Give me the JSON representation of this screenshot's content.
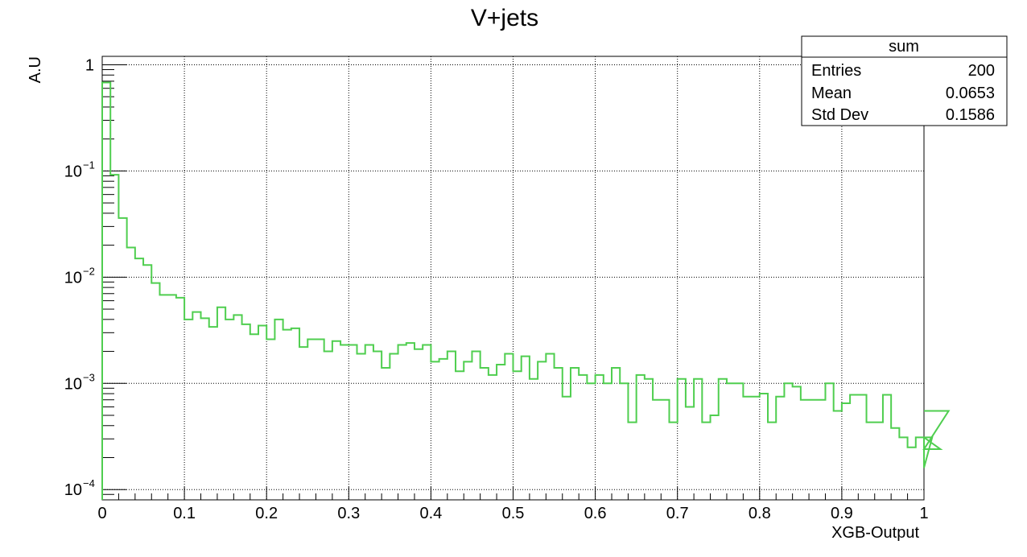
{
  "chart_data": {
    "type": "bar",
    "title": "V+jets",
    "xlabel": "XGB-Output",
    "ylabel": "A.U",
    "xlim": [
      0,
      1
    ],
    "ylim": [
      8e-05,
      1.2
    ],
    "yscale": "log",
    "grid": true,
    "line_color": "#4fce4f",
    "bin_width": 0.01,
    "x_ticks": [
      "0",
      "0.1",
      "0.2",
      "0.3",
      "0.4",
      "0.5",
      "0.6",
      "0.7",
      "0.8",
      "0.9",
      "1"
    ],
    "y_ticks": [
      {
        "value": 1,
        "base": "1",
        "exp": ""
      },
      {
        "value": 0.1,
        "base": "10",
        "exp": "−1"
      },
      {
        "value": 0.01,
        "base": "10",
        "exp": "−2"
      },
      {
        "value": 0.001,
        "base": "10",
        "exp": "−3"
      },
      {
        "value": 0.0001,
        "base": "10",
        "exp": "−4"
      }
    ],
    "values": [
      0.68,
      0.092,
      0.036,
      0.019,
      0.015,
      0.013,
      0.0088,
      0.0068,
      0.0068,
      0.0064,
      0.004,
      0.0047,
      0.0041,
      0.0034,
      0.0052,
      0.004,
      0.0044,
      0.0036,
      0.0029,
      0.0035,
      0.0026,
      0.004,
      0.0032,
      0.0033,
      0.0022,
      0.0026,
      0.0026,
      0.002,
      0.0025,
      0.0023,
      0.0023,
      0.0019,
      0.0023,
      0.002,
      0.0014,
      0.0019,
      0.0023,
      0.0024,
      0.0021,
      0.0023,
      0.0016,
      0.0017,
      0.002,
      0.0013,
      0.0016,
      0.002,
      0.0014,
      0.0012,
      0.0015,
      0.0019,
      0.0013,
      0.0018,
      0.0011,
      0.0016,
      0.0019,
      0.0014,
      0.00075,
      0.0014,
      0.0012,
      0.001,
      0.0012,
      0.001,
      0.0014,
      0.001,
      0.00043,
      0.0012,
      0.0011,
      0.0007,
      0.0007,
      0.00043,
      0.0011,
      0.0006,
      0.0011,
      0.00043,
      0.0005,
      0.0011,
      0.001,
      0.001,
      0.00075,
      0.00075,
      0.0008,
      0.00043,
      0.00075,
      0.001,
      0.00093,
      0.0007,
      0.0007,
      0.0007,
      0.001,
      0.00055,
      0.00065,
      0.00078,
      0.00078,
      0.00043,
      0.00043,
      0.00078,
      0.00038,
      0.00031,
      0.00025,
      0.00031,
      0.00016,
      0.00031,
      0.00024,
      0.00055
    ]
  },
  "stats_box": {
    "title": "sum",
    "rows": [
      {
        "label": "Entries",
        "value": "200"
      },
      {
        "label": "Mean",
        "value": "0.0653"
      },
      {
        "label": "Std Dev",
        "value": "0.1586"
      }
    ]
  }
}
